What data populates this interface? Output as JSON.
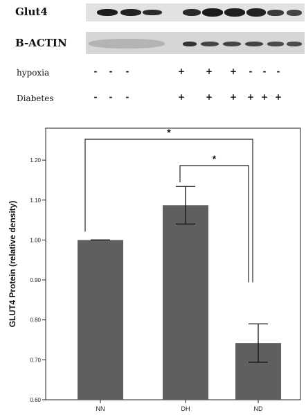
{
  "blot": {
    "glut4_label": "Glut4",
    "actin_label": "B-ACTIN",
    "hypoxia_label": "hypoxia",
    "diabetes_label": "Diabetes",
    "hypoxia_signs": [
      "-",
      "-",
      "-",
      "+",
      "+",
      "+",
      "-",
      "-",
      "-"
    ],
    "diabetes_signs": [
      "-",
      "-",
      "-",
      "+",
      "+",
      "+",
      "+",
      "+",
      "+"
    ]
  },
  "chart_data": {
    "type": "bar",
    "categories": [
      "NN",
      "DH",
      "ND"
    ],
    "values": [
      1.0,
      1.087,
      0.742
    ],
    "error": [
      0.0,
      0.047,
      0.048
    ],
    "ylabel": "GLUT4 Protein (relative density)",
    "ylim": [
      0.6,
      1.28
    ],
    "yticks": [
      "0.60",
      "0.70",
      "0.80",
      "0.90",
      "1.00",
      "1.10",
      "1.20"
    ],
    "significance": [
      {
        "from": "NN",
        "to": "ND",
        "label": "*"
      },
      {
        "from": "DH",
        "to": "ND",
        "label": "*"
      }
    ],
    "bar_color": "#5f5f5f"
  }
}
